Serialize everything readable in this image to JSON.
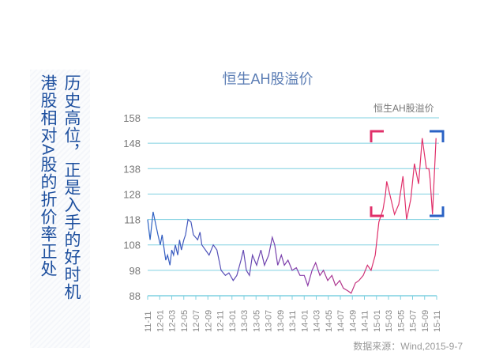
{
  "sidebar": {
    "col_right": "历史高位，正是入手的好时机",
    "col_left": "港股相对A股的折价率正处"
  },
  "chart_data": {
    "type": "line",
    "title": "恒生AH股溢价",
    "legend": [
      "恒生AH股溢价"
    ],
    "legend_position": "top-right",
    "ylim": [
      88,
      158
    ],
    "yticks": [
      "158",
      "148",
      "138",
      "128",
      "118",
      "108",
      "98",
      "88"
    ],
    "xticks": [
      "11-11",
      "12-01",
      "12-03",
      "12-05",
      "12-07",
      "12-09",
      "12-11",
      "13-01",
      "13-03",
      "13-05",
      "13-07",
      "13-09",
      "13-11",
      "14-01",
      "14-03",
      "14-05",
      "14-07",
      "14-09",
      "14-11",
      "15-01",
      "15-03",
      "15-05",
      "15-07",
      "15-09",
      "15-11"
    ],
    "x_unit": "months since 2011-11",
    "xlim": [
      0,
      48
    ],
    "series": [
      {
        "name": "恒生AH股溢价",
        "points": [
          [
            0,
            118
          ],
          [
            0.4,
            110
          ],
          [
            0.9,
            121
          ],
          [
            1.7,
            112
          ],
          [
            2.1,
            108
          ],
          [
            2.4,
            112
          ],
          [
            3.0,
            102
          ],
          [
            3.3,
            104
          ],
          [
            3.7,
            100
          ],
          [
            4.0,
            106
          ],
          [
            4.3,
            104
          ],
          [
            4.6,
            108
          ],
          [
            5.0,
            104
          ],
          [
            5.3,
            110
          ],
          [
            5.6,
            106
          ],
          [
            6.0,
            110
          ],
          [
            6.3,
            112
          ],
          [
            6.7,
            118
          ],
          [
            7.2,
            117
          ],
          [
            7.6,
            112
          ],
          [
            8.3,
            110
          ],
          [
            8.7,
            113
          ],
          [
            9.0,
            108
          ],
          [
            9.6,
            106
          ],
          [
            10.2,
            104
          ],
          [
            10.9,
            108
          ],
          [
            11.5,
            106
          ],
          [
            12.2,
            98
          ],
          [
            12.9,
            96
          ],
          [
            13.5,
            97
          ],
          [
            14.2,
            94
          ],
          [
            14.8,
            96
          ],
          [
            15.5,
            102
          ],
          [
            15.9,
            106
          ],
          [
            16.4,
            98
          ],
          [
            16.9,
            96
          ],
          [
            17.4,
            104
          ],
          [
            18.1,
            100
          ],
          [
            18.8,
            106
          ],
          [
            19.4,
            100
          ],
          [
            20.1,
            104
          ],
          [
            20.7,
            111
          ],
          [
            21.1,
            108
          ],
          [
            21.6,
            100
          ],
          [
            22.2,
            104
          ],
          [
            22.7,
            100
          ],
          [
            23.3,
            102
          ],
          [
            24.0,
            98
          ],
          [
            24.7,
            99
          ],
          [
            25.3,
            96
          ],
          [
            26.0,
            96
          ],
          [
            26.6,
            92
          ],
          [
            27.3,
            98
          ],
          [
            27.9,
            101
          ],
          [
            28.6,
            96
          ],
          [
            29.2,
            98
          ],
          [
            29.9,
            94
          ],
          [
            30.6,
            96
          ],
          [
            31.2,
            92
          ],
          [
            31.9,
            94
          ],
          [
            32.5,
            91
          ],
          [
            33.2,
            90
          ],
          [
            33.8,
            89
          ],
          [
            34.5,
            93
          ],
          [
            35.1,
            94
          ],
          [
            35.8,
            96
          ],
          [
            36.5,
            100
          ],
          [
            37.1,
            98
          ],
          [
            37.8,
            104
          ],
          [
            38.4,
            117
          ],
          [
            39.1,
            122
          ],
          [
            39.5,
            128
          ],
          [
            39.7,
            133
          ],
          [
            40.4,
            126
          ],
          [
            41.0,
            120
          ],
          [
            41.7,
            124
          ],
          [
            42.4,
            135
          ],
          [
            43.0,
            118
          ],
          [
            43.7,
            126
          ],
          [
            44.3,
            140
          ],
          [
            45.0,
            132
          ],
          [
            45.6,
            150
          ],
          [
            46.3,
            138
          ],
          [
            46.7,
            138
          ],
          [
            46.9,
            134
          ],
          [
            47.3,
            120
          ],
          [
            47.9,
            150
          ]
        ]
      }
    ],
    "colors": {
      "start": "#2a62c4",
      "mid": "#8a3aa8",
      "end": "#e0306a",
      "grid": "#7fd0e0"
    }
  },
  "source": "数据来源：Wind,2015-9-7"
}
